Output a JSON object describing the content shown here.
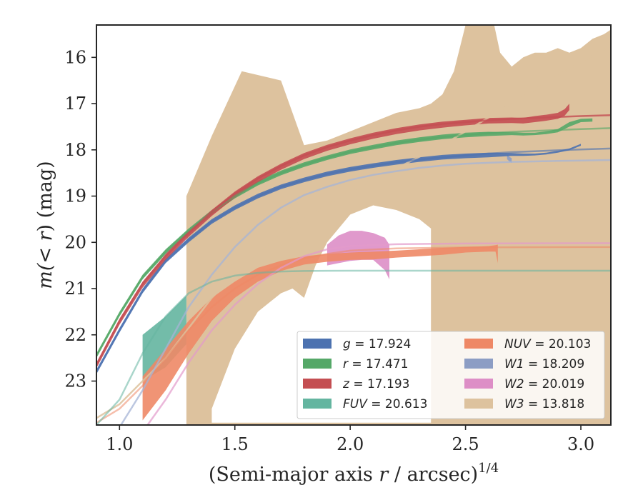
{
  "chart_data": {
    "type": "area",
    "xlabel_main": "(Semi-major axis ",
    "xlabel_var": "r",
    "xlabel_tail": " / arcsec)",
    "xlabel_exp": "1/4",
    "ylabel_main": "m(",
    "ylabel_var": "< r",
    "ylabel_tail": ") (mag)",
    "xlim": [
      0.9,
      3.13
    ],
    "ylim": [
      23.95,
      15.3
    ],
    "y_inverted": true,
    "xticks": [
      1.0,
      1.5,
      2.0,
      2.5,
      3.0
    ],
    "xtick_labels": [
      "1.0",
      "1.5",
      "2.0",
      "2.5",
      "3.0"
    ],
    "yticks": [
      16,
      17,
      18,
      19,
      20,
      21,
      22,
      23
    ],
    "ytick_labels": [
      "16",
      "17",
      "18",
      "19",
      "20",
      "21",
      "22",
      "23"
    ],
    "grid": false,
    "legend_position": "lower-right",
    "series": [
      {
        "key": "g",
        "label_name": "g",
        "label_value": "= 17.924",
        "color": "#4c72b0",
        "model_color": "#4c72b0",
        "model_opacity": 0.6,
        "model_x": [
          0.9,
          1.0,
          1.1,
          1.2,
          1.3,
          1.4,
          1.5,
          1.6,
          1.7,
          1.8,
          1.9,
          2.0,
          2.1,
          2.2,
          2.3,
          2.4,
          2.5,
          2.6,
          2.7,
          2.8,
          2.9,
          3.0,
          3.13
        ],
        "model_y": [
          22.8,
          21.9,
          21.05,
          20.4,
          19.95,
          19.55,
          19.25,
          19.0,
          18.8,
          18.65,
          18.52,
          18.42,
          18.34,
          18.27,
          18.21,
          18.16,
          18.12,
          18.08,
          18.05,
          18.03,
          18.01,
          17.99,
          17.97
        ],
        "band_x": [
          0.9,
          1.0,
          1.1,
          1.2,
          1.3,
          1.4,
          1.5,
          1.6,
          1.7,
          1.8,
          1.9,
          2.0,
          2.1,
          2.2,
          2.3,
          2.4,
          2.5,
          2.6,
          2.7,
          2.75,
          2.8,
          2.85,
          2.9,
          2.95,
          3.0
        ],
        "band_y": [
          22.75,
          21.85,
          21.0,
          20.35,
          19.9,
          19.5,
          19.2,
          18.95,
          18.75,
          18.6,
          18.47,
          18.37,
          18.29,
          18.22,
          18.16,
          18.11,
          18.08,
          18.06,
          18.07,
          18.08,
          18.08,
          18.06,
          18.02,
          17.97,
          17.87
        ],
        "band_lower": [
          22.85,
          21.95,
          21.1,
          20.45,
          20.0,
          19.6,
          19.3,
          19.05,
          18.85,
          18.7,
          18.57,
          18.47,
          18.39,
          18.32,
          18.26,
          18.21,
          18.18,
          18.16,
          18.13,
          18.13,
          18.12,
          18.1,
          18.06,
          18.01,
          17.91
        ]
      },
      {
        "key": "r",
        "label_name": "r",
        "label_value": "= 17.471",
        "color": "#55a868",
        "model_color": "#55a868",
        "model_opacity": 0.6,
        "model_x": [
          0.9,
          1.0,
          1.1,
          1.2,
          1.3,
          1.4,
          1.5,
          1.6,
          1.7,
          1.8,
          1.9,
          2.0,
          2.1,
          2.2,
          2.3,
          2.4,
          2.5,
          2.6,
          2.7,
          2.8,
          2.9,
          3.0,
          3.13
        ],
        "model_y": [
          22.45,
          21.55,
          20.75,
          20.2,
          19.75,
          19.35,
          19.0,
          18.72,
          18.5,
          18.32,
          18.17,
          18.04,
          17.94,
          17.85,
          17.78,
          17.72,
          17.68,
          17.64,
          17.61,
          17.59,
          17.57,
          17.55,
          17.53
        ],
        "band_x": [
          0.9,
          1.0,
          1.1,
          1.2,
          1.3,
          1.4,
          1.5,
          1.6,
          1.7,
          1.8,
          1.9,
          2.0,
          2.1,
          2.2,
          2.3,
          2.4,
          2.5,
          2.6,
          2.7,
          2.75,
          2.8,
          2.85,
          2.9,
          2.95,
          3.0,
          3.05
        ],
        "band_y": [
          22.4,
          21.5,
          20.7,
          20.15,
          19.7,
          19.3,
          18.95,
          18.67,
          18.45,
          18.27,
          18.12,
          17.99,
          17.89,
          17.8,
          17.73,
          17.67,
          17.63,
          17.61,
          17.62,
          17.63,
          17.63,
          17.6,
          17.55,
          17.4,
          17.33,
          17.32
        ],
        "band_lower": [
          22.5,
          21.6,
          20.8,
          20.25,
          19.8,
          19.4,
          19.05,
          18.77,
          18.55,
          18.37,
          18.22,
          18.09,
          17.99,
          17.9,
          17.83,
          17.77,
          17.73,
          17.7,
          17.68,
          17.69,
          17.68,
          17.66,
          17.62,
          17.5,
          17.4,
          17.39
        ]
      },
      {
        "key": "z",
        "label_name": "z",
        "label_value": "= 17.193",
        "color": "#c44e52",
        "model_color": "#c44e52",
        "model_opacity": 0.8,
        "model_x": [
          0.9,
          1.0,
          1.1,
          1.2,
          1.3,
          1.4,
          1.5,
          1.6,
          1.7,
          1.8,
          1.9,
          2.0,
          2.1,
          2.2,
          2.3,
          2.4,
          2.5,
          2.6,
          2.7,
          2.8,
          2.9,
          3.0,
          3.13
        ],
        "model_y": [
          22.65,
          21.7,
          20.9,
          20.3,
          19.8,
          19.35,
          18.95,
          18.62,
          18.35,
          18.12,
          17.94,
          17.8,
          17.68,
          17.58,
          17.5,
          17.44,
          17.4,
          17.36,
          17.33,
          17.31,
          17.29,
          17.27,
          17.25
        ],
        "band_x": [
          0.9,
          1.0,
          1.1,
          1.2,
          1.3,
          1.4,
          1.5,
          1.6,
          1.7,
          1.8,
          1.9,
          2.0,
          2.1,
          2.2,
          2.3,
          2.4,
          2.5,
          2.6,
          2.7,
          2.75,
          2.8,
          2.85,
          2.9,
          2.93,
          2.95
        ],
        "band_y": [
          22.6,
          21.65,
          20.85,
          20.25,
          19.75,
          19.3,
          18.9,
          18.57,
          18.3,
          18.07,
          17.89,
          17.75,
          17.63,
          17.53,
          17.45,
          17.39,
          17.35,
          17.31,
          17.3,
          17.31,
          17.27,
          17.24,
          17.2,
          17.12,
          17.0
        ],
        "band_lower": [
          22.72,
          21.78,
          20.98,
          20.38,
          19.88,
          19.43,
          19.03,
          18.7,
          18.43,
          18.2,
          18.02,
          17.88,
          17.76,
          17.66,
          17.58,
          17.52,
          17.47,
          17.43,
          17.42,
          17.43,
          17.4,
          17.37,
          17.33,
          17.26,
          17.14
        ]
      },
      {
        "key": "fuv",
        "label_name": "FUV",
        "label_value": "= 20.613",
        "color": "#64b5a0",
        "model_color": "#64b5a0",
        "model_opacity": 0.55,
        "model_x": [
          0.9,
          1.0,
          1.1,
          1.2,
          1.3,
          1.4,
          1.5,
          1.6,
          1.7,
          1.8,
          1.9,
          2.0,
          2.5,
          3.0,
          3.13
        ],
        "model_y": [
          23.95,
          23.4,
          22.4,
          21.6,
          21.1,
          20.85,
          20.72,
          20.66,
          20.63,
          20.62,
          20.615,
          20.613,
          20.613,
          20.613,
          20.613
        ],
        "band_x": [
          1.1,
          1.2,
          1.29
        ],
        "band_y": [
          22.0,
          21.6,
          21.15
        ],
        "band_lower": [
          23.0,
          22.7,
          22.2
        ]
      },
      {
        "key": "nuv",
        "label_name": "NUV",
        "label_value": "= 20.103",
        "color": "#ee8866",
        "model_color": "#ee8866",
        "model_opacity": 0.55,
        "model_x": [
          0.9,
          1.0,
          1.1,
          1.2,
          1.3,
          1.4,
          1.5,
          1.6,
          1.7,
          1.8,
          1.9,
          2.0,
          2.2,
          2.5,
          3.0,
          3.13
        ],
        "model_y": [
          23.9,
          23.6,
          23.1,
          22.5,
          21.9,
          21.4,
          21.0,
          20.7,
          20.5,
          20.35,
          20.25,
          20.18,
          20.13,
          20.11,
          20.103,
          20.103
        ],
        "band_x": [
          1.1,
          1.2,
          1.3,
          1.4,
          1.5,
          1.6,
          1.7,
          1.8,
          1.9,
          2.0,
          2.1,
          2.2,
          2.3,
          2.4,
          2.5,
          2.6,
          2.63,
          2.64
        ],
        "band_y": [
          22.9,
          22.3,
          21.7,
          21.2,
          20.85,
          20.55,
          20.4,
          20.3,
          20.25,
          20.22,
          20.2,
          20.18,
          20.15,
          20.12,
          20.1,
          20.08,
          20.06,
          20.05
        ],
        "band_lower": [
          23.85,
          23.2,
          22.4,
          21.7,
          21.2,
          20.85,
          20.62,
          20.48,
          20.42,
          20.38,
          20.37,
          20.33,
          20.3,
          20.27,
          20.22,
          20.2,
          20.2,
          20.45
        ]
      },
      {
        "key": "w1",
        "label_name": "W1",
        "label_value": "= 18.209",
        "color": "#8c9dc4",
        "model_color": "#a5b4d6",
        "model_opacity": 0.75,
        "model_x": [
          0.9,
          1.0,
          1.1,
          1.2,
          1.3,
          1.4,
          1.5,
          1.6,
          1.7,
          1.8,
          1.9,
          2.0,
          2.1,
          2.2,
          2.3,
          2.4,
          2.5,
          2.6,
          2.7,
          2.8,
          2.9,
          3.0,
          3.13
        ],
        "model_y": [
          24.6,
          24.0,
          23.2,
          22.3,
          21.4,
          20.7,
          20.1,
          19.62,
          19.25,
          18.98,
          18.8,
          18.65,
          18.54,
          18.46,
          18.39,
          18.34,
          18.3,
          18.28,
          18.26,
          18.25,
          18.24,
          18.23,
          18.22
        ],
        "band_x": [
          2.68,
          2.69,
          2.7
        ],
        "band_y": [
          18.1,
          18.15,
          18.18
        ],
        "band_lower": [
          18.2,
          18.25,
          18.28
        ]
      },
      {
        "key": "w2",
        "label_name": "W2",
        "label_value": "= 20.019",
        "color": "#dd8ec6",
        "model_color": "#e29acb",
        "model_opacity": 0.7,
        "model_x": [
          0.9,
          1.0,
          1.1,
          1.2,
          1.3,
          1.4,
          1.5,
          1.6,
          1.7,
          1.8,
          1.9,
          2.0,
          2.2,
          2.5,
          3.0,
          3.13
        ],
        "model_y": [
          25.0,
          24.7,
          24.1,
          23.4,
          22.6,
          21.9,
          21.35,
          20.9,
          20.55,
          20.3,
          20.15,
          20.08,
          20.04,
          20.025,
          20.019,
          20.019
        ],
        "band_x": [
          1.9,
          1.95,
          2.0,
          2.05,
          2.1,
          2.15,
          2.17
        ],
        "band_y": [
          20.05,
          19.85,
          19.75,
          19.75,
          19.8,
          19.9,
          20.05
        ],
        "band_lower": [
          20.5,
          20.45,
          20.4,
          20.38,
          20.38,
          20.6,
          20.8
        ]
      },
      {
        "key": "w3",
        "label_name": "W3",
        "label_value": "= 13.818",
        "color": "#ddc29e",
        "model_color": "#ddc29e",
        "model_opacity": 0.85,
        "model_x": [
          0.9,
          1.0,
          1.2,
          1.4,
          1.6,
          1.8,
          2.0,
          2.2,
          2.4,
          2.6,
          2.8,
          3.0,
          3.13
        ],
        "model_y": [
          23.8,
          23.5,
          22.5,
          21.2,
          20.2,
          19.5,
          18.9,
          18.4,
          17.9,
          17.3,
          16.7,
          16.1,
          15.75
        ],
        "band_x": [
          1.29,
          1.4,
          1.53,
          1.7,
          1.8,
          1.9,
          2.0,
          2.1,
          2.2,
          2.3,
          2.35,
          2.4,
          2.45,
          2.5,
          2.55,
          2.6,
          2.62,
          2.65,
          2.7,
          2.75,
          2.8,
          2.85,
          2.9,
          2.95,
          3.0,
          3.05,
          3.1,
          3.13
        ],
        "band_y": [
          19.0,
          17.7,
          16.3,
          16.5,
          17.9,
          17.8,
          17.6,
          17.4,
          17.2,
          17.1,
          17.0,
          16.8,
          16.3,
          15.3,
          14.9,
          14.8,
          15.2,
          15.9,
          16.2,
          16.0,
          15.9,
          15.9,
          15.8,
          15.9,
          15.8,
          15.6,
          15.5,
          15.4
        ],
        "band_lower": [
          24.5,
          24.5,
          24.5,
          24.5,
          24.5,
          24.5,
          24.5,
          24.5,
          24.5,
          24.5,
          24.5,
          24.5,
          24.5,
          24.5,
          24.5,
          24.5,
          24.5,
          24.5,
          24.5,
          24.5,
          24.5,
          24.5,
          24.5,
          24.5,
          24.5,
          24.5,
          24.5,
          24.5
        ],
        "band_holes": [
          {
            "x": [
              1.4,
              1.5,
              1.6,
              1.7,
              1.75,
              1.8,
              1.85,
              1.9,
              2.0,
              2.1,
              2.2,
              2.3,
              2.35
            ],
            "top": [
              23.6,
              22.3,
              21.5,
              21.1,
              21.0,
              21.2,
              20.5,
              20.0,
              19.4,
              19.2,
              19.3,
              19.5,
              19.7
            ],
            "bottom": [
              23.9,
              23.9,
              23.9,
              23.9,
              23.9,
              23.9,
              23.9,
              23.9,
              23.9,
              23.9,
              23.9,
              23.9,
              23.9
            ]
          }
        ]
      }
    ]
  }
}
